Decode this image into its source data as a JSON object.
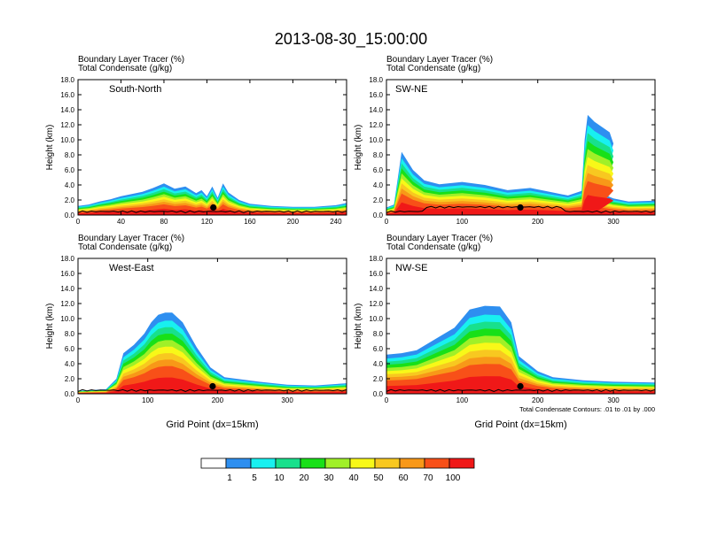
{
  "title": "2013-08-30_15:00:00",
  "chart_data": {
    "type": "heatmap",
    "title": "2013-08-30_15:00:00",
    "panels": [
      {
        "label": "South-North",
        "line1": "Boundary Layer Tracer   (%)",
        "line2": "Total Condensate   (g/kg)",
        "ylabel": "Height (km)",
        "xlim": [
          0,
          250
        ],
        "ylim": [
          0,
          18
        ],
        "xticks": [
          "0",
          "40",
          "80",
          "120",
          "160",
          "200",
          "240"
        ],
        "yticks": [
          "0.0",
          "2.0",
          "4.0",
          "6.0",
          "8.0",
          "10.0",
          "12.0",
          "14.0",
          "16.0",
          "18.0"
        ],
        "marker_x": 126,
        "boundary_layer_top_km": [
          [
            0,
            1.2
          ],
          [
            10,
            1.4
          ],
          [
            20,
            1.8
          ],
          [
            30,
            2.1
          ],
          [
            40,
            2.5
          ],
          [
            50,
            2.8
          ],
          [
            60,
            3.1
          ],
          [
            70,
            3.6
          ],
          [
            80,
            4.2
          ],
          [
            90,
            3.5
          ],
          [
            100,
            3.8
          ],
          [
            110,
            2.9
          ],
          [
            115,
            3.3
          ],
          [
            120,
            2.5
          ],
          [
            125,
            3.8
          ],
          [
            130,
            2.3
          ],
          [
            135,
            4.2
          ],
          [
            140,
            3.0
          ],
          [
            150,
            2.0
          ],
          [
            160,
            1.5
          ],
          [
            180,
            1.2
          ],
          [
            200,
            1.1
          ],
          [
            220,
            1.1
          ],
          [
            240,
            1.3
          ],
          [
            250,
            1.6
          ]
        ],
        "xlabel": ""
      },
      {
        "label": "SW-NE",
        "line1": "Boundary Layer Tracer   (%)",
        "line2": "Total Condensate   (g/kg)",
        "ylabel": "Height (km)",
        "xlim": [
          0,
          355
        ],
        "ylim": [
          0,
          18
        ],
        "xticks": [
          "0",
          "100",
          "200",
          "300"
        ],
        "yticks": [
          "0.0",
          "2.0",
          "4.0",
          "6.0",
          "8.0",
          "10.0",
          "12.0",
          "14.0",
          "16.0",
          "18.0"
        ],
        "marker_x": 177,
        "boundary_layer_top_km": [
          [
            0,
            1.0
          ],
          [
            10,
            1.4
          ],
          [
            20,
            8.4
          ],
          [
            35,
            6.0
          ],
          [
            50,
            4.6
          ],
          [
            70,
            4.1
          ],
          [
            100,
            4.4
          ],
          [
            130,
            4.0
          ],
          [
            160,
            3.3
          ],
          [
            190,
            3.6
          ],
          [
            220,
            3.0
          ],
          [
            240,
            2.6
          ],
          [
            258,
            3.2
          ],
          [
            262,
            10.0
          ],
          [
            266,
            13.3
          ],
          [
            275,
            12.4
          ],
          [
            295,
            11.0
          ],
          [
            300,
            9.5
          ],
          [
            280,
            3.0
          ],
          [
            300,
            2.2
          ],
          [
            320,
            1.8
          ],
          [
            355,
            1.9
          ]
        ],
        "xlabel": ""
      },
      {
        "label": "West-East",
        "line1": "Boundary Layer Tracer   (%)",
        "line2": "Total Condensate   (g/kg)",
        "ylabel": "Height (km)",
        "xlim": [
          0,
          385
        ],
        "ylim": [
          0,
          18
        ],
        "xticks": [
          "0",
          "100",
          "200",
          "300"
        ],
        "yticks": [
          "0.0",
          "2.0",
          "4.0",
          "6.0",
          "8.0",
          "10.0",
          "12.0",
          "14.0",
          "16.0",
          "18.0"
        ],
        "marker_x": 193,
        "boundary_layer_top_km": [
          [
            0,
            0.4
          ],
          [
            40,
            0.6
          ],
          [
            55,
            2.0
          ],
          [
            65,
            5.4
          ],
          [
            80,
            6.5
          ],
          [
            95,
            8.0
          ],
          [
            105,
            9.5
          ],
          [
            115,
            10.5
          ],
          [
            125,
            10.8
          ],
          [
            135,
            10.8
          ],
          [
            150,
            9.5
          ],
          [
            170,
            6.2
          ],
          [
            190,
            3.5
          ],
          [
            210,
            2.2
          ],
          [
            260,
            1.6
          ],
          [
            300,
            1.2
          ],
          [
            340,
            1.1
          ],
          [
            385,
            1.4
          ]
        ],
        "xlabel": "Grid Point (dx=15km)"
      },
      {
        "label": "NW-SE",
        "line1": "Boundary Layer Tracer   (%)",
        "line2": "Total Condensate   (g/kg)",
        "ylabel": "Height (km)",
        "xlim": [
          0,
          355
        ],
        "ylim": [
          0,
          18
        ],
        "xticks": [
          "0",
          "100",
          "200",
          "300"
        ],
        "yticks": [
          "0.0",
          "2.0",
          "4.0",
          "6.0",
          "8.0",
          "10.0",
          "12.0",
          "14.0",
          "16.0",
          "18.0"
        ],
        "marker_x": 177,
        "boundary_layer_top_km": [
          [
            0,
            5.2
          ],
          [
            20,
            5.4
          ],
          [
            40,
            5.8
          ],
          [
            60,
            7.0
          ],
          [
            90,
            8.8
          ],
          [
            110,
            11.2
          ],
          [
            130,
            11.7
          ],
          [
            150,
            11.6
          ],
          [
            165,
            9.5
          ],
          [
            175,
            5.0
          ],
          [
            200,
            3.0
          ],
          [
            220,
            2.2
          ],
          [
            260,
            1.8
          ],
          [
            300,
            1.6
          ],
          [
            355,
            1.5
          ]
        ],
        "xlabel": "Grid Point (dx=15km)",
        "footnote": "Total Condensate Contours: .01 to .01 by .000"
      }
    ],
    "colorbar": {
      "labels": [
        "1",
        "5",
        "10",
        "20",
        "30",
        "40",
        "50",
        "60",
        "70",
        "100"
      ],
      "colors": [
        "#ffffff",
        "#2e8ff0",
        "#18f0f0",
        "#18e08c",
        "#18e018",
        "#a0f028",
        "#f8f818",
        "#f8c820",
        "#f89818",
        "#f85018",
        "#f01818"
      ]
    }
  }
}
